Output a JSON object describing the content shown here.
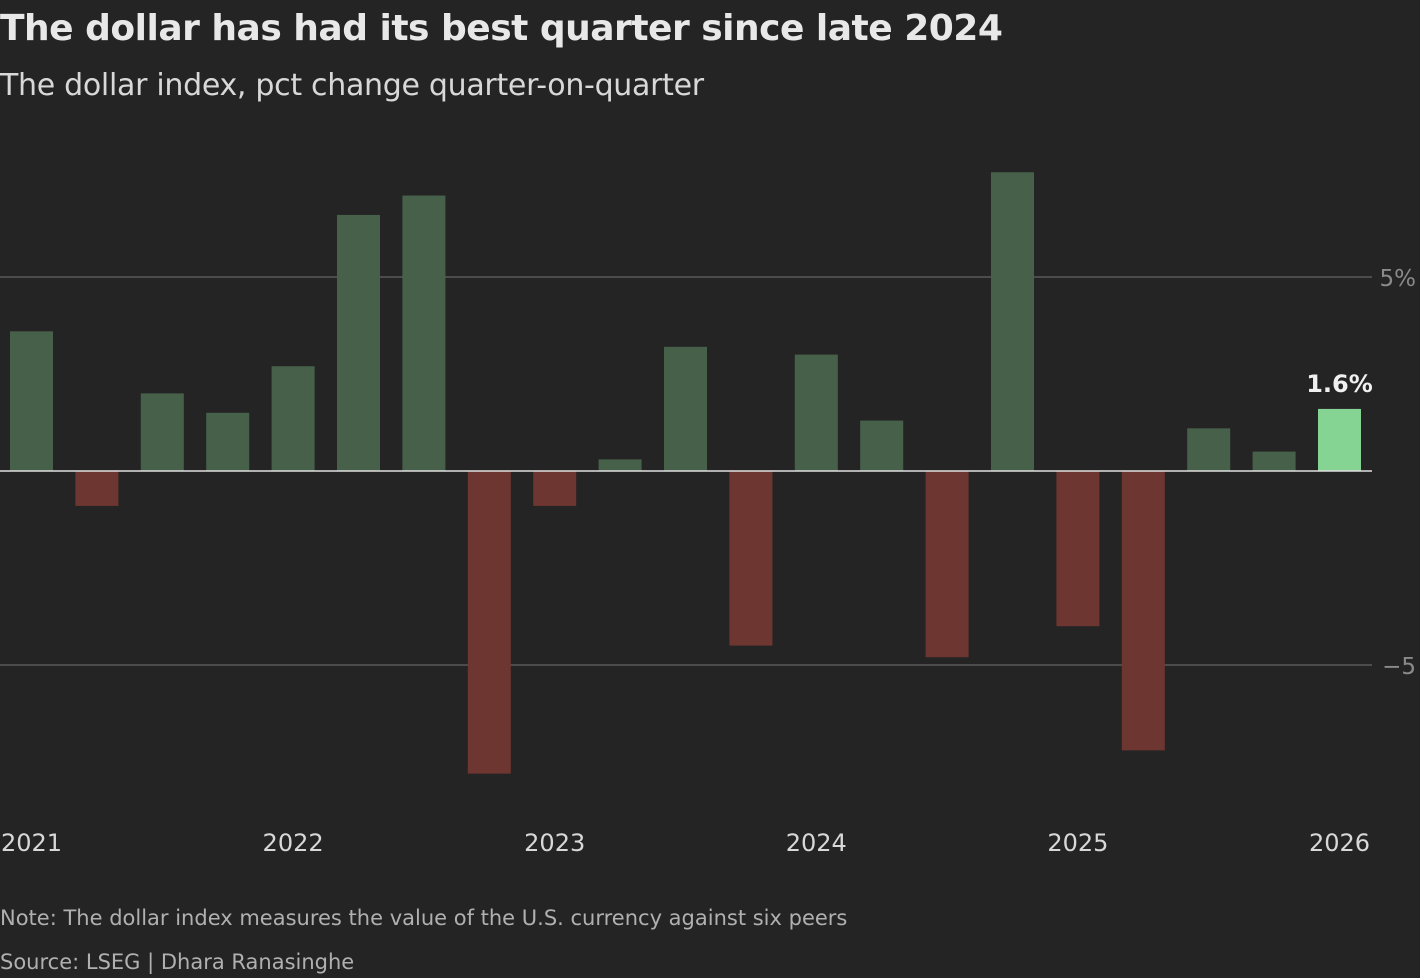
{
  "title": "The dollar has had its best quarter since late 2024",
  "subtitle": "The dollar index, pct change quarter-on-quarter",
  "note": "Note: The dollar index measures the value of the U.S. currency against six peers",
  "source": "Source: LSEG | Dhara Ranasinghe",
  "colors": {
    "positive": "#46604a",
    "negative": "#6e3630",
    "highlight": "#86d493",
    "background": "#242424",
    "grid": "#5a5a5a"
  },
  "chart_data": {
    "type": "bar",
    "title": "The dollar has had its best quarter since late 2024",
    "subtitle": "The dollar index, pct change quarter-on-quarter",
    "values": [
      3.6,
      -0.9,
      2.0,
      1.5,
      2.7,
      6.6,
      7.1,
      -7.8,
      -0.9,
      0.3,
      3.2,
      -4.5,
      3.0,
      1.3,
      -4.8,
      7.7,
      -4.0,
      -7.2,
      1.1,
      0.5,
      1.6
    ],
    "x_tick_labels": [
      {
        "index": 0,
        "label": "2021"
      },
      {
        "index": 4,
        "label": "2022"
      },
      {
        "index": 8,
        "label": "2023"
      },
      {
        "index": 12,
        "label": "2024"
      },
      {
        "index": 16,
        "label": "2025"
      },
      {
        "index": 20,
        "label": "2026"
      }
    ],
    "y_ticks": [
      {
        "value": 5,
        "label": "5%"
      },
      {
        "value": -5,
        "label": "−5"
      }
    ],
    "ylim": [
      -8.2,
      8
    ],
    "grid": true,
    "annotation": {
      "index": 20,
      "label": "1.6%"
    }
  }
}
